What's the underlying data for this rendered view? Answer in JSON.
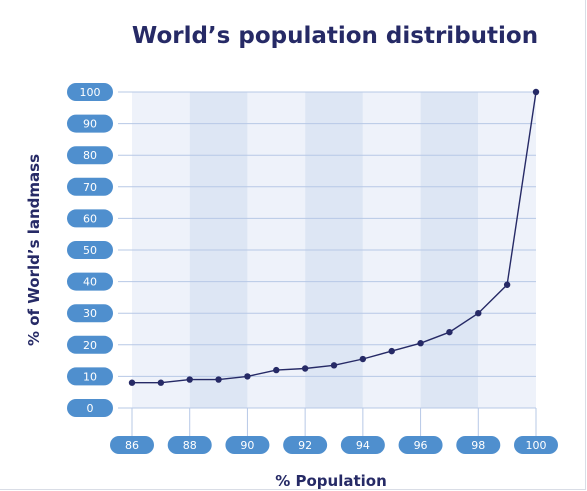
{
  "chart_data": {
    "type": "line",
    "title": "World’s population distribution",
    "xlabel": "% Population",
    "ylabel": "% of World’s landmass",
    "xlim": [
      86,
      100
    ],
    "ylim": [
      0,
      100
    ],
    "x_ticks": [
      86,
      88,
      90,
      92,
      94,
      96,
      98,
      100
    ],
    "y_ticks": [
      0,
      10,
      20,
      30,
      40,
      50,
      60,
      70,
      80,
      90,
      100
    ],
    "grid": true,
    "series": [
      {
        "x": [
          86,
          87,
          88,
          89,
          90,
          91,
          92,
          93,
          94,
          95,
          96,
          97,
          98,
          99,
          100
        ],
        "y": [
          8,
          8,
          9,
          9,
          10,
          12,
          12.5,
          13.5,
          15.5,
          18,
          20.5,
          24,
          30,
          39,
          100
        ]
      }
    ],
    "colors": {
      "line": "#262a66",
      "marker": "#262a66",
      "tick_pill": "#4f8fce",
      "band_light": "#eef2fa",
      "band_dark": "#dde6f4",
      "grid": "#b7c8e6",
      "text_dark": "#262a66"
    }
  }
}
